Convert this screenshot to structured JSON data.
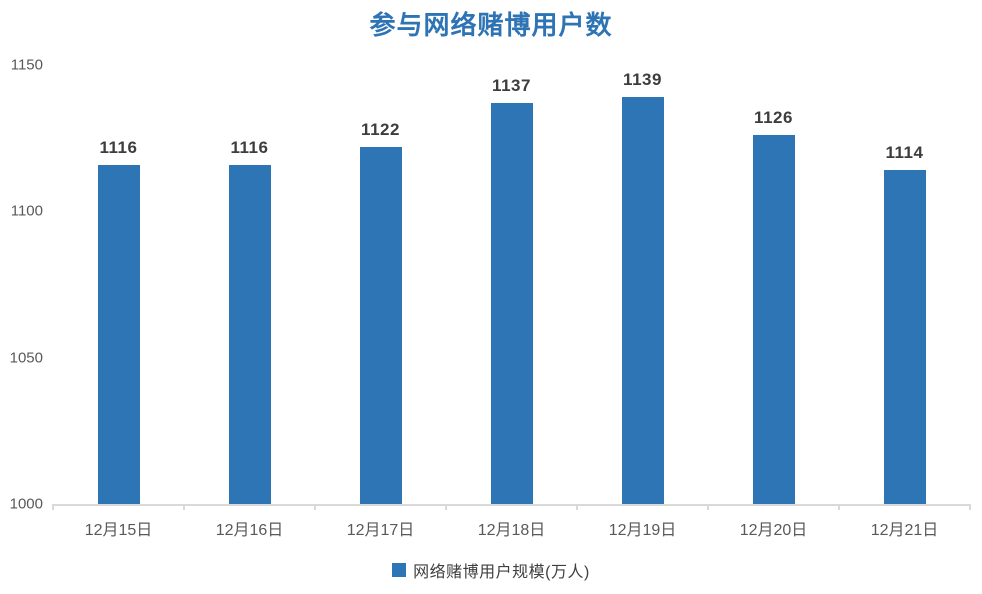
{
  "title": "参与网络赌博用户数",
  "chart_data": {
    "type": "bar",
    "title": "参与网络赌博用户数",
    "categories": [
      "12月15日",
      "12月16日",
      "12月17日",
      "12月18日",
      "12月19日",
      "12月20日",
      "12月21日"
    ],
    "values": [
      1116,
      1116,
      1122,
      1137,
      1139,
      1126,
      1114
    ],
    "series_name": "网络赌博用户规模(万人)",
    "xlabel": "",
    "ylabel": "",
    "ylim": [
      1000,
      1150
    ],
    "yticks": [
      1000,
      1050,
      1100,
      1150
    ],
    "grid": false,
    "legend_position": "bottom",
    "data_labels": true,
    "colors": {
      "bar": "#2E75B6",
      "title": "#2E74B5",
      "value_label": "#3d3d3d",
      "axis_line": "#d9d9d9",
      "tick_label": "#595959"
    }
  },
  "legend": {
    "label": "网络赌博用户规模(万人)",
    "marker_color": "#2E75B6"
  }
}
